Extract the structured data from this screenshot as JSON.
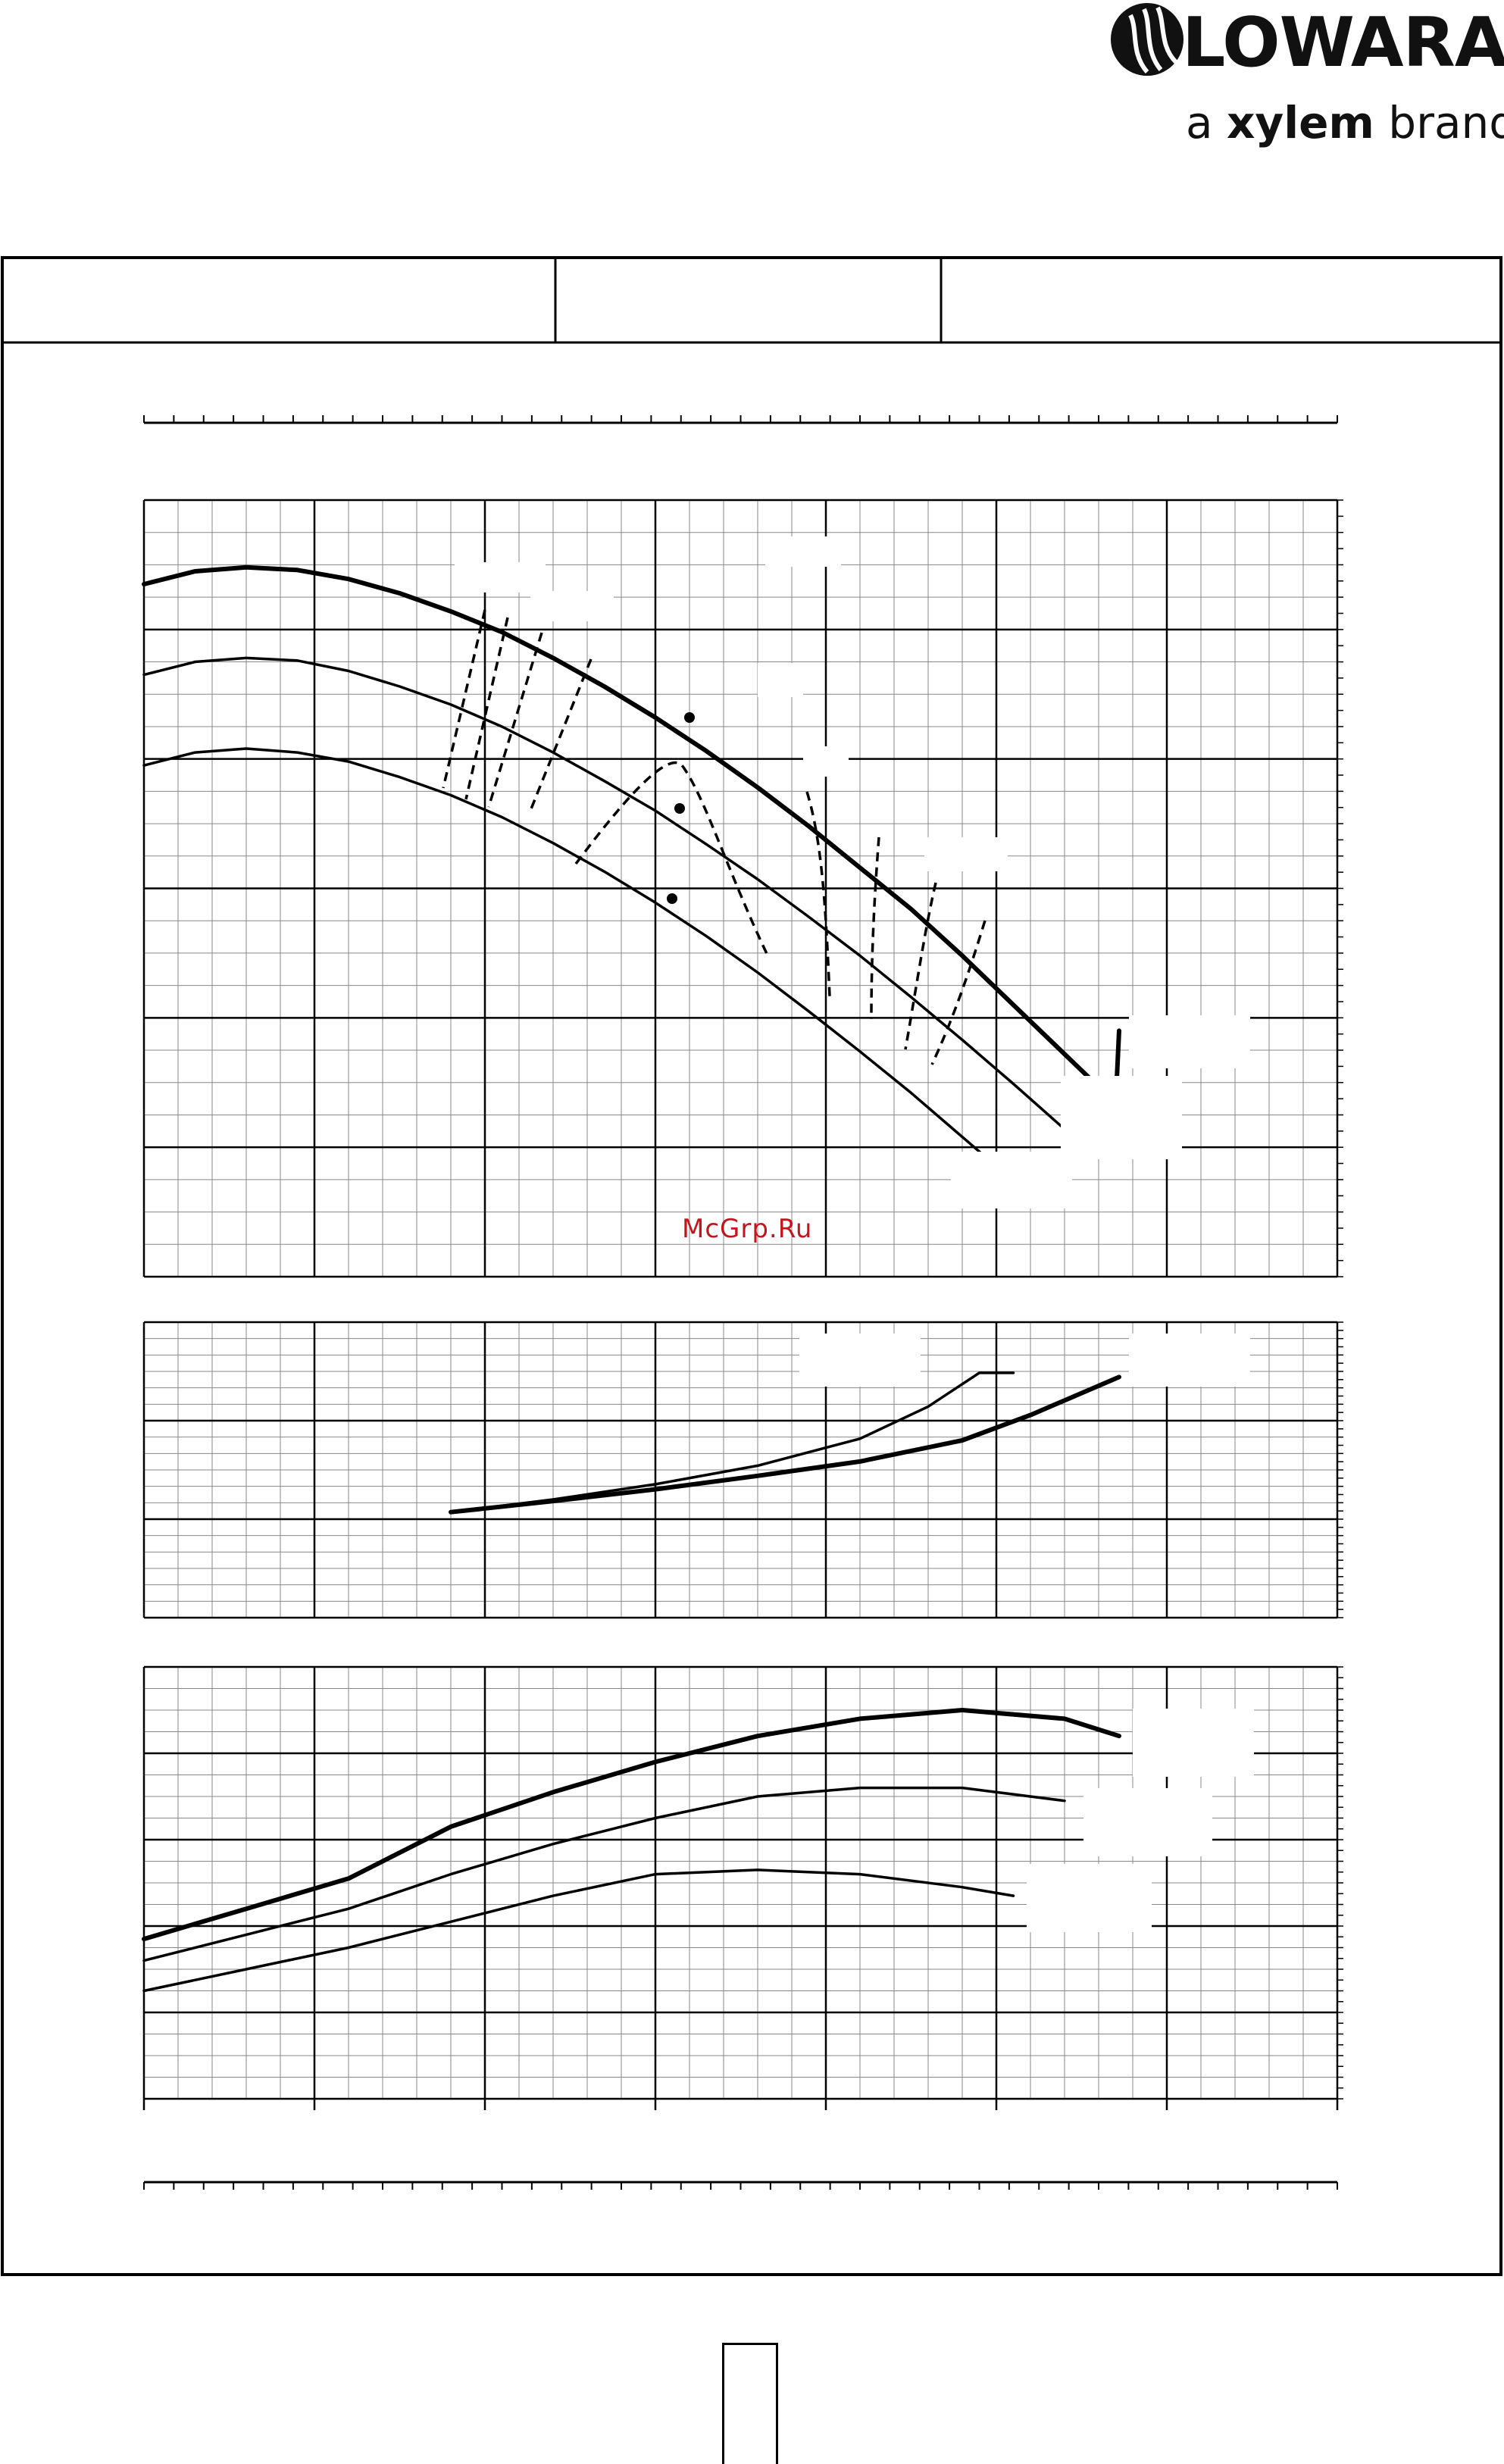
{
  "header": {
    "brand_name": "LOWARA",
    "tagline_prefix": "a ",
    "tagline_bold": "xylem",
    "tagline_suffix": " brand"
  },
  "watermark": "McGrp.Ru",
  "colors": {
    "line": "#000000",
    "grid": "#000000",
    "minor_grid": "#888888",
    "watermark": "#c4141c"
  },
  "chart_data": [
    {
      "type": "line",
      "title": "",
      "xlabel": "",
      "ylabel": "",
      "xlim": [
        0,
        7
      ],
      "ylim": [
        0,
        6
      ],
      "grid": true,
      "series": [
        {
          "x": [
            0,
            0.3,
            0.6,
            0.9,
            1.2,
            1.5,
            1.8,
            2.1,
            2.4,
            2.7,
            3.0,
            3.3,
            3.6,
            3.9,
            4.2,
            4.5,
            4.8,
            5.1,
            5.4,
            5.7,
            5.72
          ],
          "values": [
            5.35,
            5.45,
            5.48,
            5.46,
            5.39,
            5.28,
            5.14,
            4.98,
            4.78,
            4.56,
            4.32,
            4.06,
            3.78,
            3.48,
            3.16,
            2.84,
            2.48,
            2.1,
            1.72,
            1.34,
            1.9
          ]
        },
        {
          "x": [
            0,
            0.3,
            0.6,
            0.9,
            1.2,
            1.5,
            1.8,
            2.1,
            2.4,
            2.7,
            3.0,
            3.3,
            3.6,
            3.9,
            4.2,
            4.5,
            4.8,
            5.1,
            5.4
          ],
          "values": [
            4.65,
            4.75,
            4.78,
            4.76,
            4.68,
            4.56,
            4.42,
            4.25,
            4.05,
            3.83,
            3.6,
            3.34,
            3.07,
            2.78,
            2.48,
            2.16,
            1.83,
            1.49,
            1.14
          ]
        },
        {
          "x": [
            0,
            0.3,
            0.6,
            0.9,
            1.2,
            1.5,
            1.8,
            2.1,
            2.4,
            2.7,
            3.0,
            3.3,
            3.6,
            3.9,
            4.2,
            4.5,
            4.8,
            5.1
          ],
          "values": [
            3.95,
            4.05,
            4.08,
            4.05,
            3.98,
            3.86,
            3.72,
            3.55,
            3.35,
            3.13,
            2.89,
            2.63,
            2.35,
            2.05,
            1.74,
            1.42,
            1.08,
            0.74
          ]
        }
      ]
    },
    {
      "type": "line",
      "title": "",
      "xlabel": "",
      "ylabel": "",
      "xlim": [
        0,
        7
      ],
      "ylim": [
        0,
        3.5
      ],
      "grid": true,
      "series": [
        {
          "x": [
            1.8,
            2.4,
            3.0,
            3.6,
            4.2,
            4.8,
            5.2,
            5.72
          ],
          "values": [
            1.25,
            1.38,
            1.52,
            1.68,
            1.85,
            2.1,
            2.4,
            2.85
          ]
        },
        {
          "x": [
            1.8,
            2.4,
            3.0,
            3.6,
            4.2,
            4.6,
            4.9,
            5.1
          ],
          "values": [
            1.25,
            1.4,
            1.58,
            1.8,
            2.12,
            2.5,
            2.9,
            2.9
          ]
        }
      ]
    },
    {
      "type": "line",
      "title": "",
      "xlabel": "",
      "ylabel": "",
      "xlim": [
        0,
        7
      ],
      "ylim": [
        0,
        5
      ],
      "grid": true,
      "series": [
        {
          "x": [
            0,
            0.6,
            1.2,
            1.8,
            2.4,
            3.0,
            3.6,
            4.2,
            4.8,
            5.4,
            5.72
          ],
          "values": [
            1.85,
            2.2,
            2.55,
            3.15,
            3.55,
            3.9,
            4.2,
            4.4,
            4.5,
            4.4,
            4.2
          ]
        },
        {
          "x": [
            0,
            0.6,
            1.2,
            1.8,
            2.4,
            3.0,
            3.6,
            4.2,
            4.8,
            5.4
          ],
          "values": [
            1.6,
            1.9,
            2.2,
            2.6,
            2.95,
            3.25,
            3.5,
            3.6,
            3.6,
            3.45
          ]
        },
        {
          "x": [
            0,
            0.6,
            1.2,
            1.8,
            2.4,
            3.0,
            3.6,
            4.2,
            4.8,
            5.1
          ],
          "values": [
            1.25,
            1.5,
            1.75,
            2.05,
            2.35,
            2.6,
            2.65,
            2.6,
            2.45,
            2.35
          ]
        }
      ]
    }
  ]
}
